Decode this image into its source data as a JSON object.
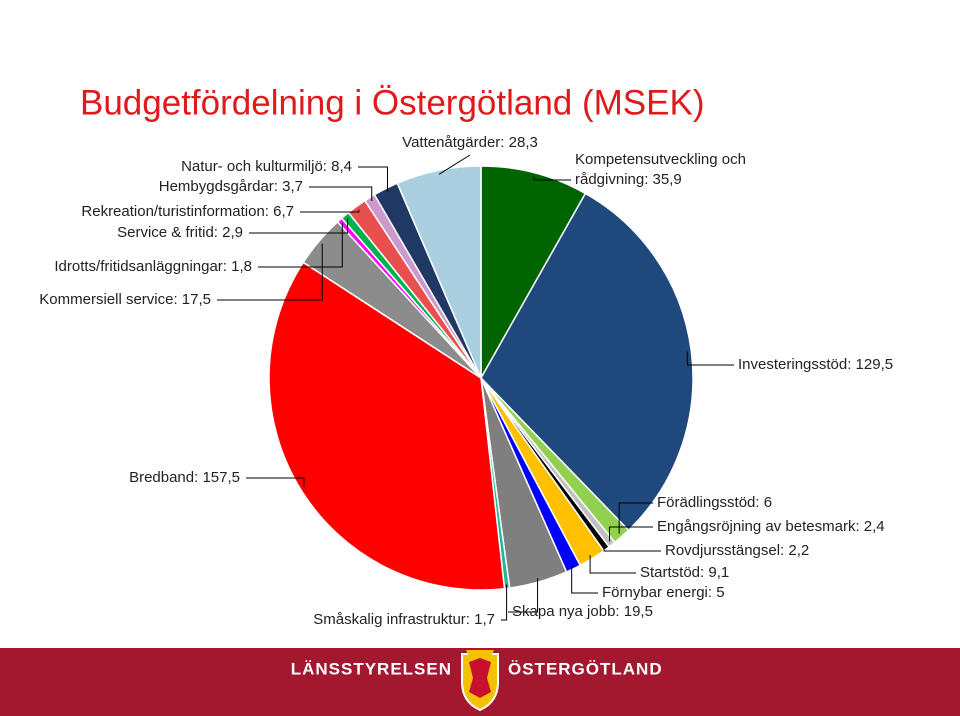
{
  "chart_data": {
    "type": "pie",
    "title": "Budgetfördelning i Östergötland (MSEK)",
    "values": [
      35.9,
      129.5,
      6,
      2.4,
      2.2,
      9.1,
      5,
      19.5,
      1.7,
      157.5,
      17.5,
      1.8,
      2.9,
      6.7,
      3.7,
      8.4,
      28.3
    ],
    "value_labels": [
      "Kompetensutveckling och\nrådgivning: 35,9",
      "Investeringsstöd: 129,5",
      "Förädlingsstöd: 6",
      "Engångsröjning av betesmark: 2,4",
      "Rovdjursstängsel: 2,2",
      "Startstöd: 9,1",
      "Förnybar energi: 5",
      "Skapa nya jobb: 19,5",
      "Småskalig infrastruktur: 1,7",
      "Bredband: 157,5",
      "Kommersiell service: 17,5",
      "Idrotts/fritidsanläggningar: 1,8",
      "Service & fritid: 2,9",
      "Rekreation/turistinformation: 6,7",
      "Hembygdsgårdar: 3,7",
      "Natur- och kulturmiljö: 8,4",
      "Vattenåtgärder: 28,3"
    ],
    "colors": [
      "#006400",
      "#1f497d",
      "#92d050",
      "#c0c0c0",
      "#000000",
      "#ffc000",
      "#0000ff",
      "#7f7f7f",
      "#1fb89a",
      "#ff0000",
      "#8c8c8c",
      "#ff00ff",
      "#00b050",
      "#e8504f",
      "#cc99cc",
      "#1f3864",
      "#a9cfe0"
    ]
  },
  "footer": {
    "left": "LÄNSSTYRELSEN",
    "right": "ÖSTERGÖTLAND"
  }
}
